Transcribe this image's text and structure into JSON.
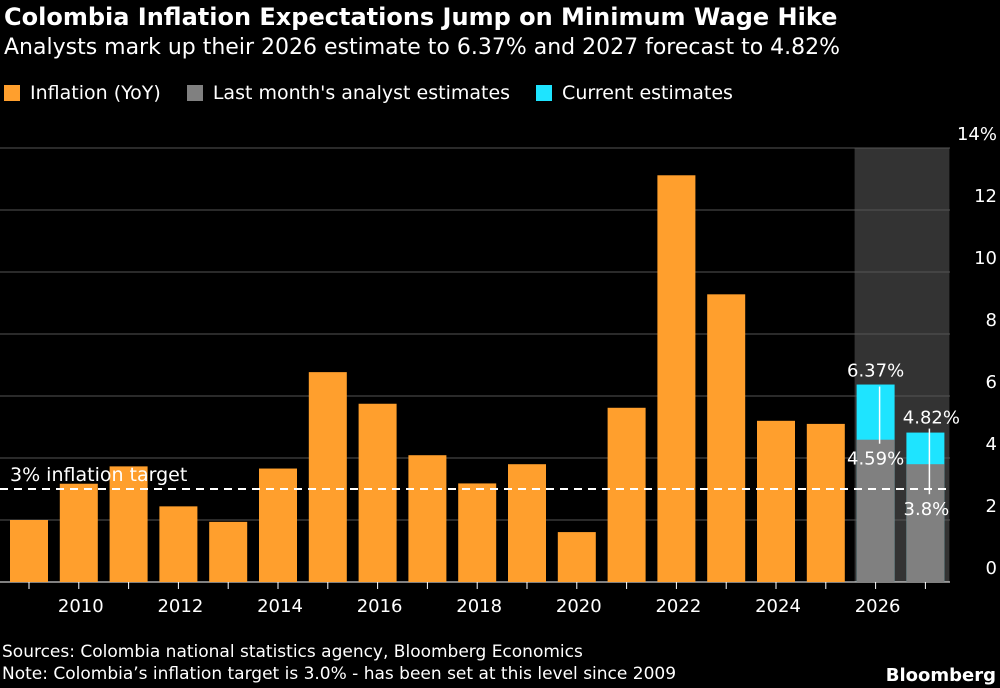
{
  "title": "Colombia Inflation Expectations Jump on Minimum Wage Hike",
  "subtitle": "Analysts mark up their 2026 estimate to 6.37% and 2027 forecast to 4.82%",
  "legend": [
    {
      "label": "Inflation (YoY)",
      "color": "#ff9f2d"
    },
    {
      "label": "Last month's analyst estimates",
      "color": "#808080"
    },
    {
      "label": "Current estimates",
      "color": "#1ee4ff"
    }
  ],
  "footer": {
    "sources": "Sources: Colombia national statistics agency, Bloomberg Economics",
    "note": "Note: Colombia’s inflation target is 3.0% - has been set at this level since 2009"
  },
  "brand": "Bloomberg",
  "chart_data": {
    "type": "bar",
    "categories": [
      "2009",
      "2010",
      "2011",
      "2012",
      "2013",
      "2014",
      "2015",
      "2016",
      "2017",
      "2018",
      "2019",
      "2020",
      "2021",
      "2022",
      "2023",
      "2024",
      "2025",
      "2026",
      "2027"
    ],
    "series": [
      {
        "name": "Inflation (YoY)",
        "color": "#ff9f2d",
        "values": [
          2.0,
          3.17,
          3.73,
          2.44,
          1.94,
          3.66,
          6.77,
          5.75,
          4.09,
          3.18,
          3.8,
          1.61,
          5.62,
          13.12,
          9.28,
          5.2,
          5.1,
          null,
          null
        ]
      },
      {
        "name": "Last month's analyst estimates",
        "color": "#808080",
        "values": [
          null,
          null,
          null,
          null,
          null,
          null,
          null,
          null,
          null,
          null,
          null,
          null,
          null,
          null,
          null,
          null,
          null,
          4.59,
          3.8
        ]
      },
      {
        "name": "Current estimates",
        "color": "#1ee4ff",
        "values": [
          null,
          null,
          null,
          null,
          null,
          null,
          null,
          null,
          null,
          null,
          null,
          null,
          null,
          null,
          null,
          null,
          null,
          6.37,
          4.82
        ]
      }
    ],
    "data_labels": [
      {
        "category": "2026",
        "current": "6.37%",
        "previous": "4.59%"
      },
      {
        "category": "2027",
        "current": "4.82%",
        "previous": "3.8%"
      }
    ],
    "forecast_shading": [
      "2026",
      "2027"
    ],
    "x_tick_labels": [
      "2010",
      "2012",
      "2014",
      "2016",
      "2018",
      "2020",
      "2022",
      "2024",
      "2026"
    ],
    "y_ticks": [
      0,
      2,
      4,
      6,
      8,
      10,
      12,
      14
    ],
    "y_tick_labels": [
      "0",
      "2",
      "4",
      "6",
      "8",
      "10",
      "12",
      "14%"
    ],
    "ylim": [
      0,
      14
    ],
    "target_line": {
      "value": 3.0,
      "label": "3% inflation target"
    },
    "grid": true,
    "title": "Colombia Inflation Expectations Jump on Minimum Wage Hike",
    "xlabel": "",
    "ylabel": ""
  }
}
